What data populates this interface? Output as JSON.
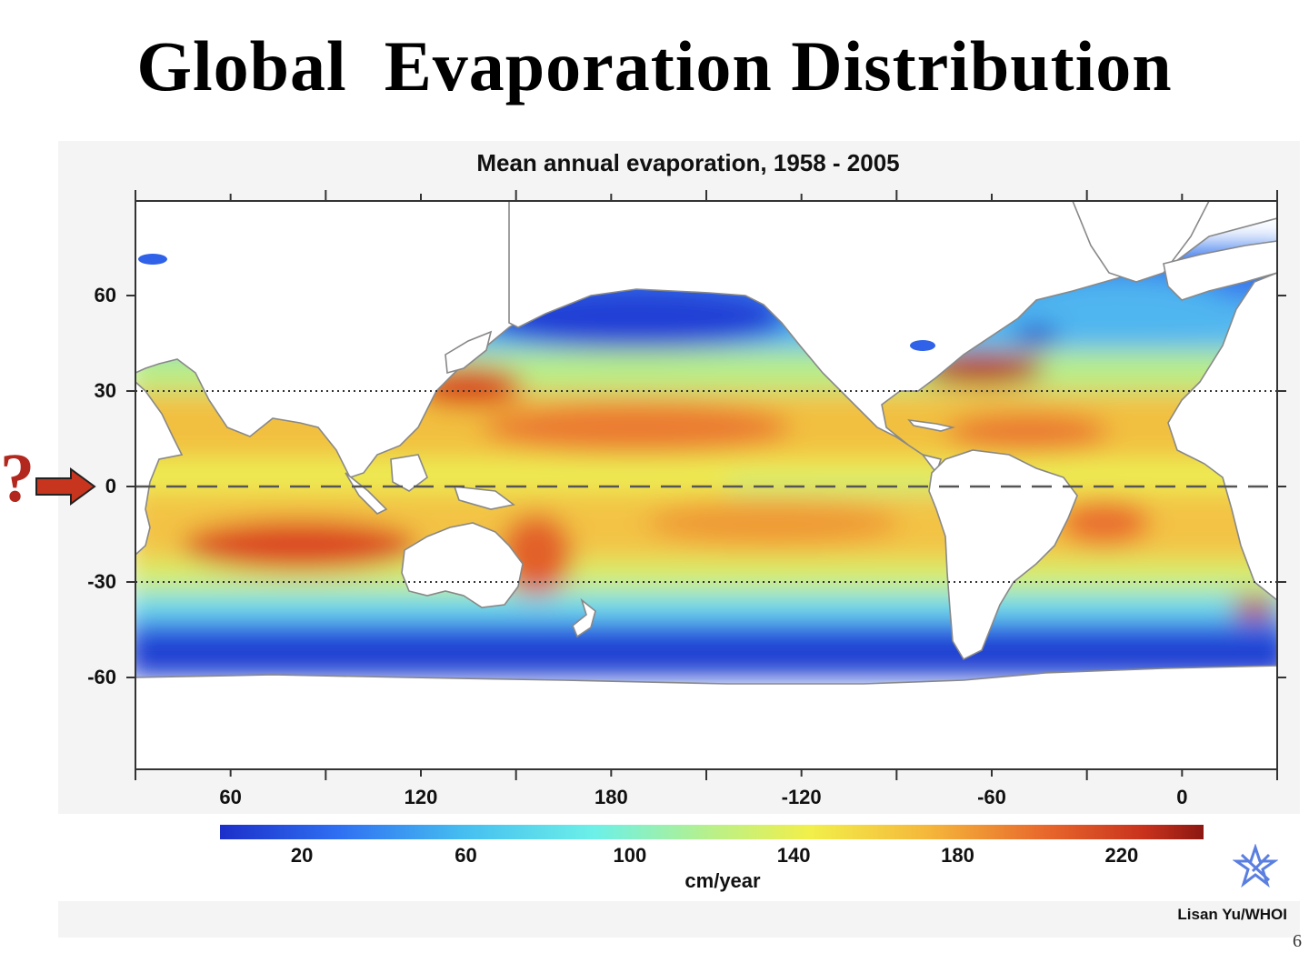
{
  "slide": {
    "title": "Global  Evaporation Distribution",
    "page_number": "6",
    "question_mark": "?",
    "arrow_icon": "right-arrow-icon",
    "arrow_color": "#c7351f",
    "star_icon": "star-logo-icon"
  },
  "map": {
    "title": "Mean annual evaporation, 1958 - 2005",
    "credit": "Lisan Yu/WHOI",
    "x_tick_labels": [
      "60",
      "120",
      "180",
      "-120",
      "-60",
      "0"
    ],
    "y_tick_labels": [
      "60",
      "30",
      "0",
      "-30",
      "-60"
    ],
    "reference_lines": [
      {
        "latitude": 30,
        "style": "dotted"
      },
      {
        "latitude": 0,
        "style": "dashed"
      },
      {
        "latitude": -30,
        "style": "dotted"
      }
    ],
    "land_color": "#ffffff",
    "coastline_color": "#888888"
  },
  "colorbar": {
    "unit": "cm/year",
    "tick_labels": [
      "20",
      "60",
      "100",
      "140",
      "180",
      "220"
    ],
    "range": [
      0,
      240
    ],
    "colors": [
      "#1c2fc9",
      "#2f6ff2",
      "#46bff0",
      "#6cf0e8",
      "#b9f089",
      "#f2ef4a",
      "#f5b73b",
      "#e8672c",
      "#c8321d",
      "#8c1712"
    ]
  }
}
